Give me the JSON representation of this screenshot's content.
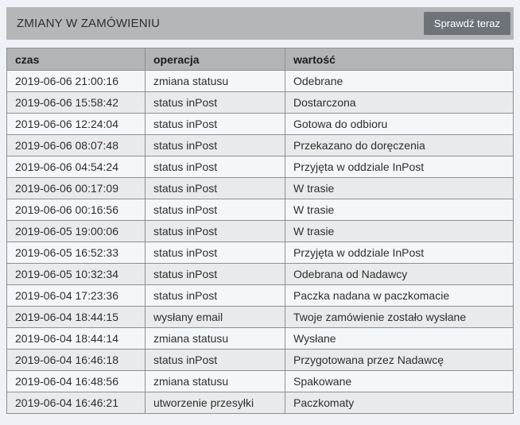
{
  "panel": {
    "title": "ZMIANY W ZAMÓWIENIU",
    "check_button_label": "Sprawdź teraz"
  },
  "table": {
    "columns": [
      "czas",
      "operacja",
      "wartość"
    ],
    "rows": [
      {
        "czas": "2019-06-06 21:00:16",
        "operacja": "zmiana statusu",
        "wartosc": "Odebrane"
      },
      {
        "czas": "2019-06-06 15:58:42",
        "operacja": "status inPost",
        "wartosc": "Dostarczona"
      },
      {
        "czas": "2019-06-06 12:24:04",
        "operacja": "status inPost",
        "wartosc": "Gotowa do odbioru"
      },
      {
        "czas": "2019-06-06 08:07:48",
        "operacja": "status inPost",
        "wartosc": "Przekazano do doręczenia"
      },
      {
        "czas": "2019-06-06 04:54:24",
        "operacja": "status inPost",
        "wartosc": "Przyjęta w oddziale InPost"
      },
      {
        "czas": "2019-06-06 00:17:09",
        "operacja": "status inPost",
        "wartosc": "W trasie"
      },
      {
        "czas": "2019-06-06 00:16:56",
        "operacja": "status inPost",
        "wartosc": "W trasie"
      },
      {
        "czas": "2019-06-05 19:00:06",
        "operacja": "status inPost",
        "wartosc": "W trasie"
      },
      {
        "czas": "2019-06-05 16:52:33",
        "operacja": "status inPost",
        "wartosc": "Przyjęta w oddziale InPost"
      },
      {
        "czas": "2019-06-05 10:32:34",
        "operacja": "status inPost",
        "wartosc": "Odebrana od Nadawcy"
      },
      {
        "czas": "2019-06-04 17:23:36",
        "operacja": "status inPost",
        "wartosc": "Paczka nadana w paczkomacie"
      },
      {
        "czas": "2019-06-04 18:44:15",
        "operacja": "wysłany email",
        "wartosc": "Twoje zamówienie zostało wysłane"
      },
      {
        "czas": "2019-06-04 18:44:14",
        "operacja": "zmiana statusu",
        "wartosc": "Wysłane"
      },
      {
        "czas": "2019-06-04 16:46:18",
        "operacja": "status inPost",
        "wartosc": "Przygotowana przez Nadawcę"
      },
      {
        "czas": "2019-06-04 16:48:56",
        "operacja": "zmiana statusu",
        "wartosc": "Spakowane"
      },
      {
        "czas": "2019-06-04 16:46:21",
        "operacja": "utworzenie przesyłki",
        "wartosc": "Paczkomaty"
      }
    ]
  },
  "colors": {
    "page_background": "#eef2f6",
    "panel_header_background": "#b5b6b8",
    "button_background": "#6e737a",
    "button_text": "#ffffff",
    "table_header_background": "#b3b4b5",
    "row_odd_background": "#f4f7fa",
    "row_even_background": "#e9eaeb",
    "table_border": "#8f8f8f",
    "text": "#2e2e2e"
  }
}
